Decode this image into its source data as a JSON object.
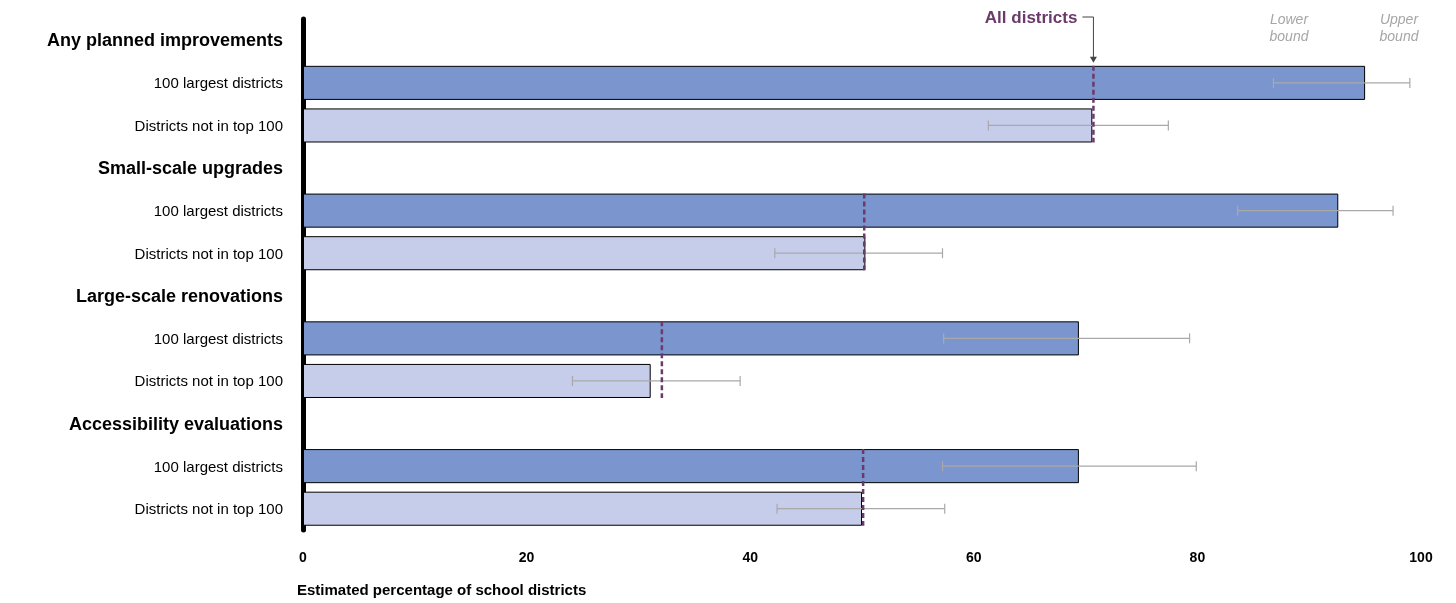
{
  "chart_data": {
    "type": "bar",
    "orientation": "horizontal",
    "xlabel": "Estimated percentage of school districts",
    "categories": [
      "Any planned improvements",
      "100 largest districts",
      "Districts not in top 100",
      "Small-scale upgrades",
      "100 largest districts",
      "Districts not in top 100",
      "Large-scale renovations",
      "100 largest districts",
      "Districts not in top 100",
      "Accessibility evaluations",
      "100 largest districts",
      "Districts not in top 100"
    ],
    "values": [
      null,
      95.0,
      70.6,
      null,
      92.6,
      50.3,
      null,
      69.4,
      31.1,
      null,
      69.4,
      50.0
    ],
    "colors": [
      null,
      "#7b96cf",
      "#c5cdea",
      null,
      "#7b96cf",
      "#c5cdea",
      null,
      "#7b96cf",
      "#c5cdea",
      null,
      "#7b96cf",
      "#c5cdea"
    ],
    "errors": [
      null,
      [
        86.8,
        99.0
      ],
      [
        61.3,
        77.4
      ],
      null,
      [
        83.6,
        97.5
      ],
      [
        42.2,
        57.2
      ],
      null,
      [
        57.3,
        79.3
      ],
      [
        24.1,
        39.1
      ],
      null,
      [
        57.2,
        79.9
      ],
      [
        42.4,
        57.4
      ]
    ],
    "xlim": [
      0,
      100
    ],
    "xticks": [
      0,
      20,
      40,
      60,
      80,
      100
    ],
    "grid": false,
    "ref_lines": [
      {
        "axis": "x",
        "value": 70.7,
        "label": "All districts",
        "color": "#6b3a6b",
        "line_style": "dashed"
      },
      {
        "axis": "x",
        "value": 50.2,
        "color": "#6b3a6b",
        "line_style": "dashed"
      },
      {
        "axis": "x",
        "value": 32.1,
        "color": "#6b3a6b",
        "line_style": "dashed"
      },
      {
        "axis": "x",
        "value": 50.1,
        "color": "#6b3a6b",
        "line_style": "dashed"
      }
    ],
    "annotations": [
      "Lower bound",
      "Upper bound"
    ]
  }
}
